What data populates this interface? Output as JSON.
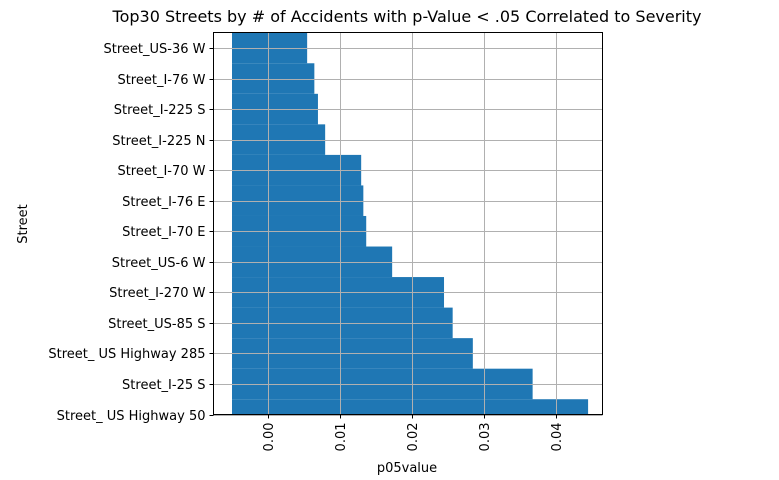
{
  "chart_data": {
    "type": "bar",
    "orientation": "horizontal",
    "title": "Top30 Streets by # of Accidents with p-Value < .05 Correlated to Severity",
    "xlabel": "p05value",
    "ylabel": "Street",
    "xlim": [
      -0.0075,
      0.0465
    ],
    "xticks": [
      "0.00",
      "0.01",
      "0.02",
      "0.03",
      "0.04"
    ],
    "xtick_values": [
      0.0,
      0.01,
      0.02,
      0.03,
      0.04
    ],
    "grid": true,
    "color": "#1f77b4",
    "categories": [
      "Street_US-36 W",
      "Street_I-76 W",
      "Street_I-225 S",
      "Street_I-225 N",
      "Street_I-70 W",
      "Street_I-76 E",
      "Street_I-70 E",
      "Street_US-6 W",
      "Street_I-270 W",
      "Street_US-85 S",
      "Street_ US Highway 285",
      "Street_I-25 S",
      "Street_ US Highway 50"
    ],
    "values": [
      0.0055,
      0.0065,
      0.007,
      0.008,
      0.013,
      0.0133,
      0.0137,
      0.0173,
      0.0245,
      0.0257,
      0.0285,
      0.0368,
      0.0445
    ]
  }
}
